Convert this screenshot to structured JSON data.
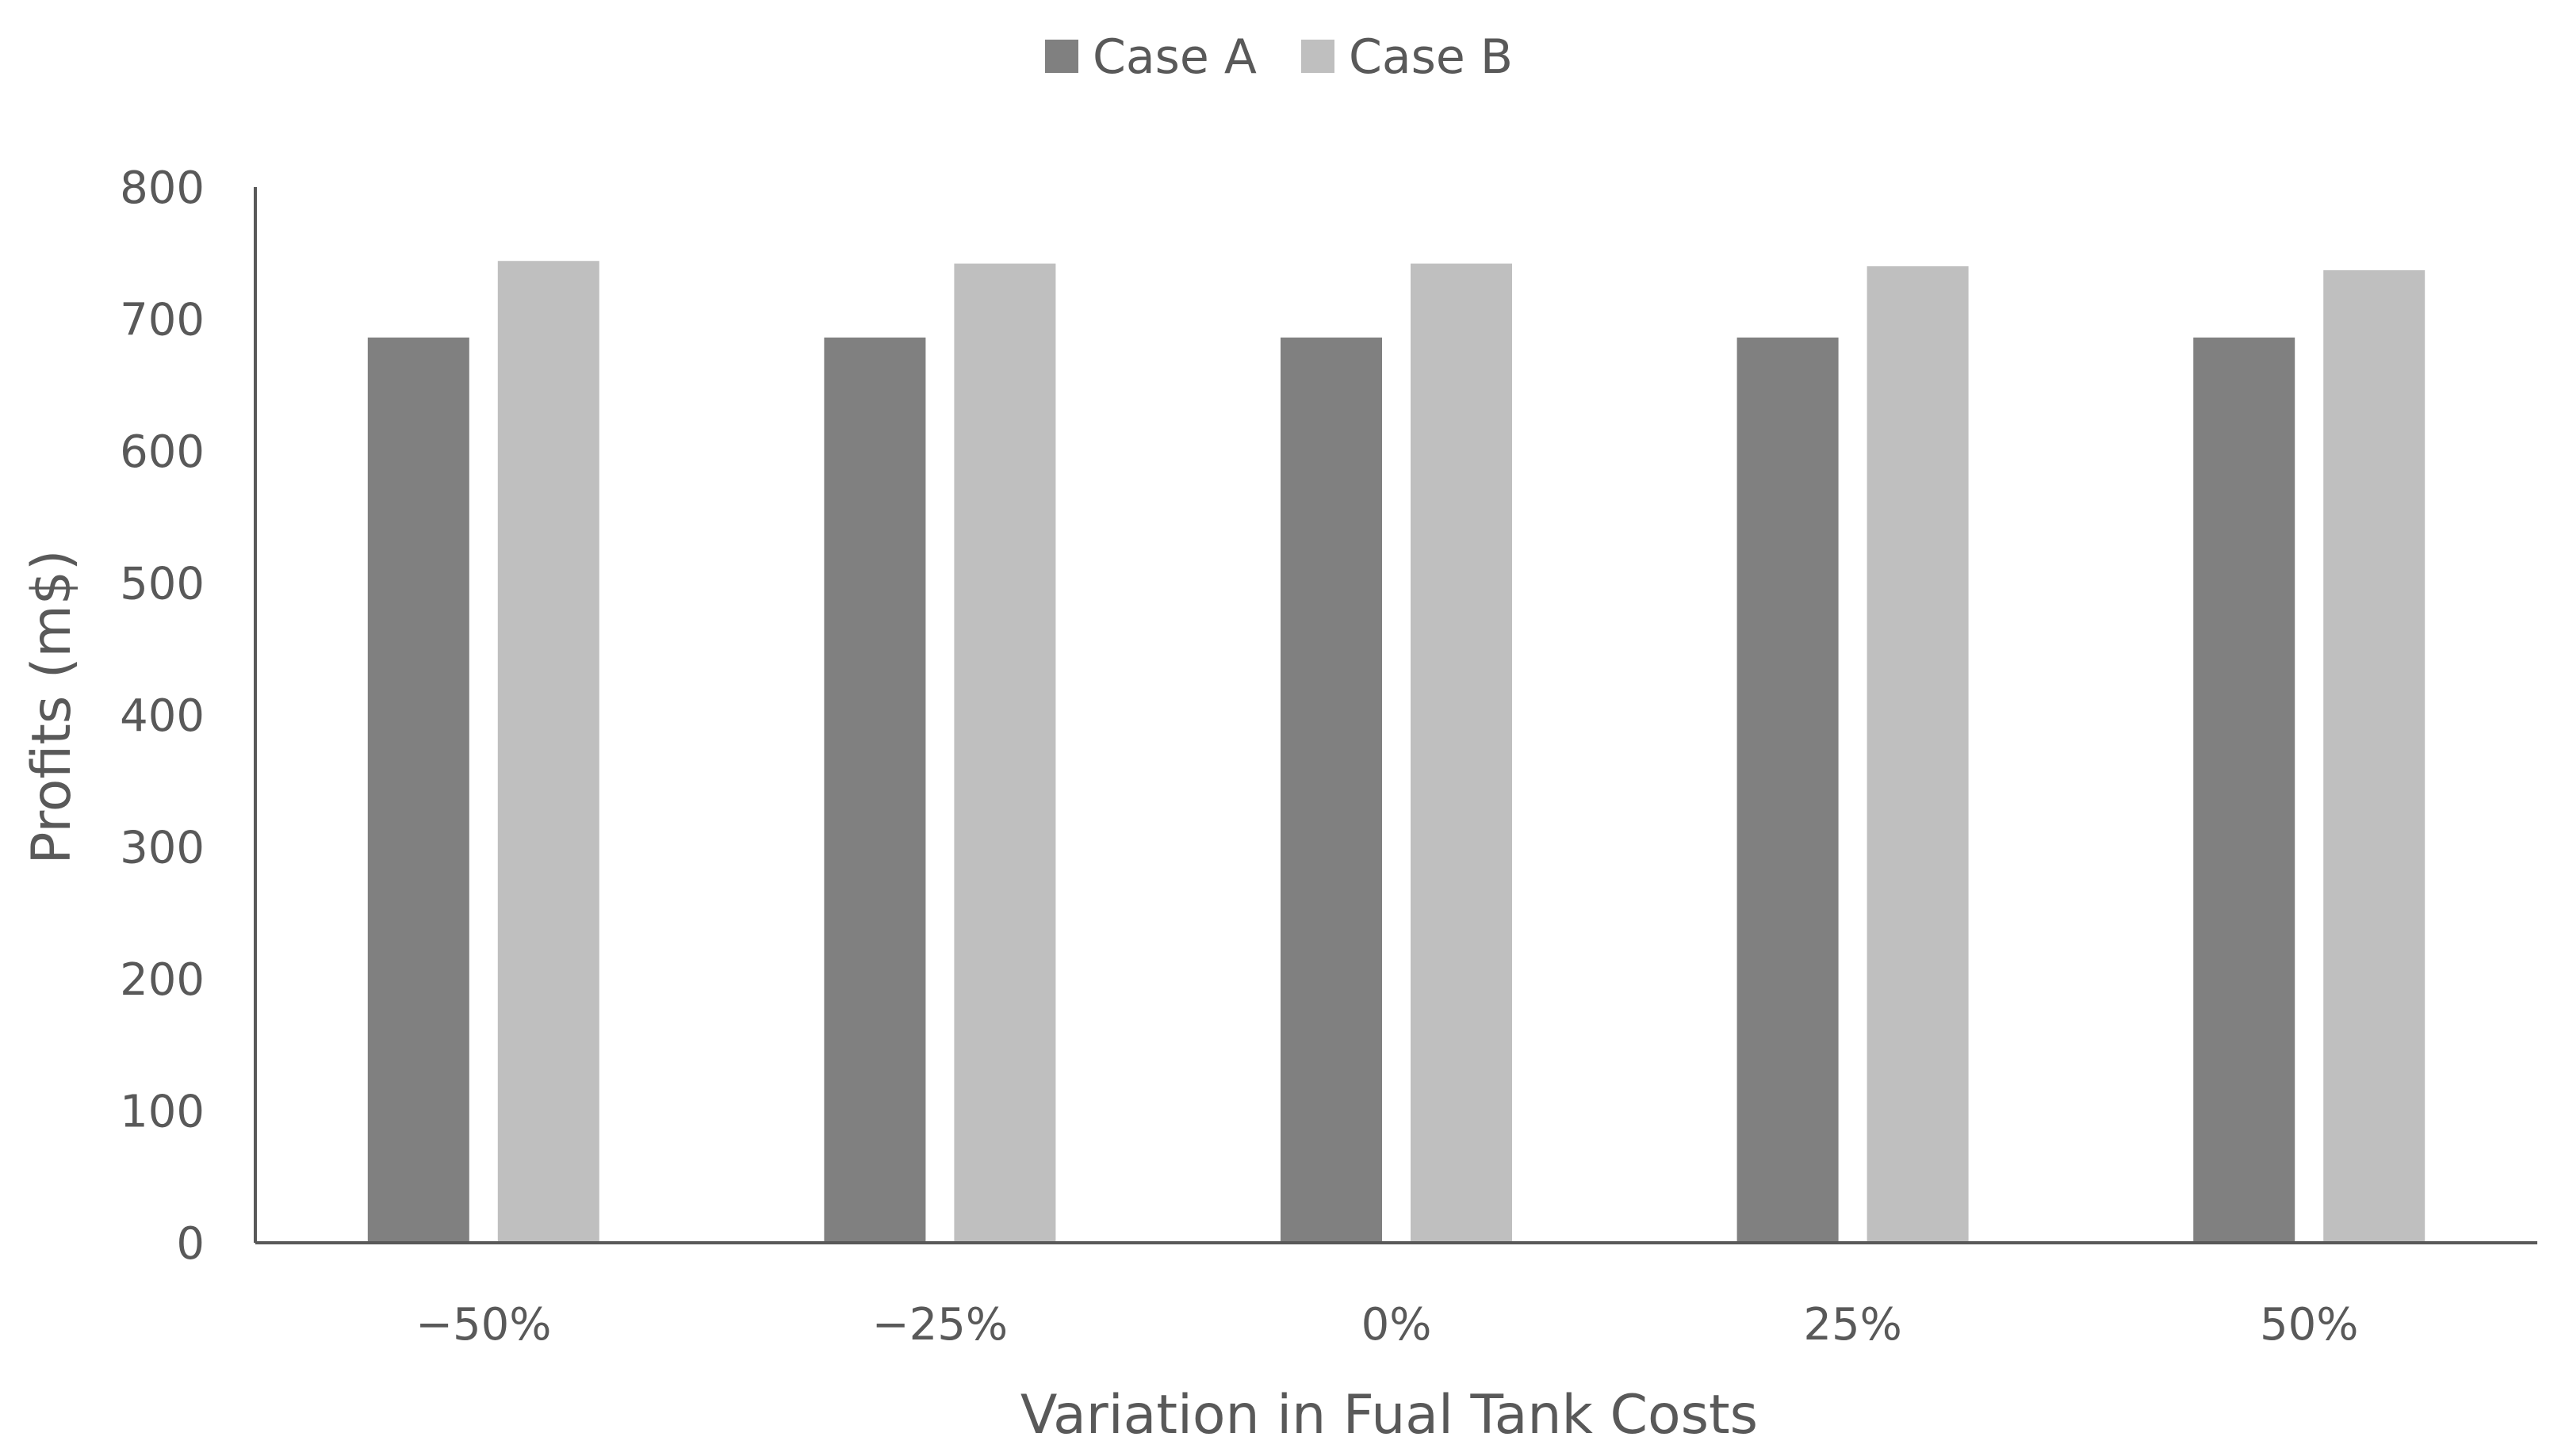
{
  "chart_data": {
    "type": "bar",
    "title": "",
    "xlabel": "Variation in Fual Tank Costs",
    "ylabel": "Profits (m$)",
    "categories": [
      "−50%",
      "−25%",
      "0%",
      "25%",
      "50%"
    ],
    "series": [
      {
        "name": "Case A",
        "color": "#808080",
        "values": [
          686,
          686,
          686,
          686,
          686
        ]
      },
      {
        "name": "Case B",
        "color": "#bfbfbf",
        "values": [
          744,
          742,
          742,
          740,
          737
        ]
      }
    ],
    "ylim": [
      0,
      800
    ],
    "yticks": [
      0,
      100,
      200,
      300,
      400,
      500,
      600,
      700,
      800
    ],
    "ytick_labels": [
      "0",
      "100",
      "200",
      "300",
      "400",
      "500",
      "600",
      "700",
      "800"
    ],
    "grid": false,
    "legend_position": "top-center",
    "axis_color": "#595959"
  }
}
